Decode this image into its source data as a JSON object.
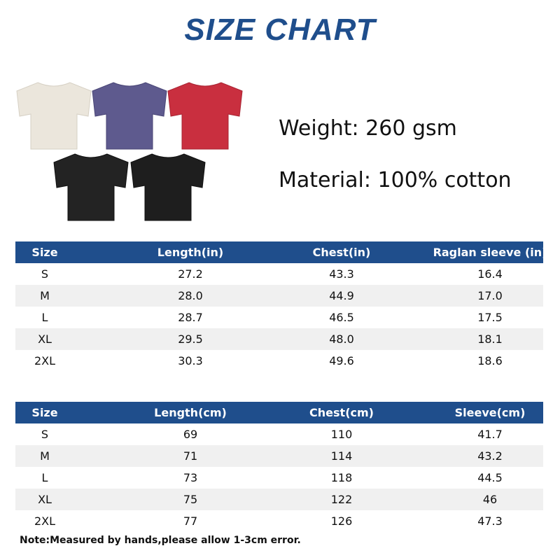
{
  "header": {
    "title": "SIZE CHART"
  },
  "specs": {
    "weight": "Weight: 260 gsm",
    "material": "Material: 100% cotton"
  },
  "tables": [
    {
      "columns": [
        "Size",
        "Length(in)",
        "Chest(in)",
        "Raglan sleeve (in)"
      ],
      "rows": [
        [
          "S",
          "27.2",
          "43.3",
          "16.4"
        ],
        [
          "M",
          "28.0",
          "44.9",
          "17.0"
        ],
        [
          "L",
          "28.7",
          "46.5",
          "17.5"
        ],
        [
          "XL",
          "29.5",
          "48.0",
          "18.1"
        ],
        [
          "2XL",
          "30.3",
          "49.6",
          "18.6"
        ]
      ]
    },
    {
      "columns": [
        "Size",
        "Length(cm)",
        "Chest(cm)",
        "Sleeve(cm)"
      ],
      "rows": [
        [
          "S",
          "69",
          "110",
          "41.7"
        ],
        [
          "M",
          "71",
          "114",
          "43.2"
        ],
        [
          "L",
          "73",
          "118",
          "44.5"
        ],
        [
          "XL",
          "75",
          "122",
          "46"
        ],
        [
          "2XL",
          "77",
          "126",
          "47.3"
        ]
      ]
    }
  ],
  "note": "Note:Measured by hands,please allow 1-3cm error."
}
